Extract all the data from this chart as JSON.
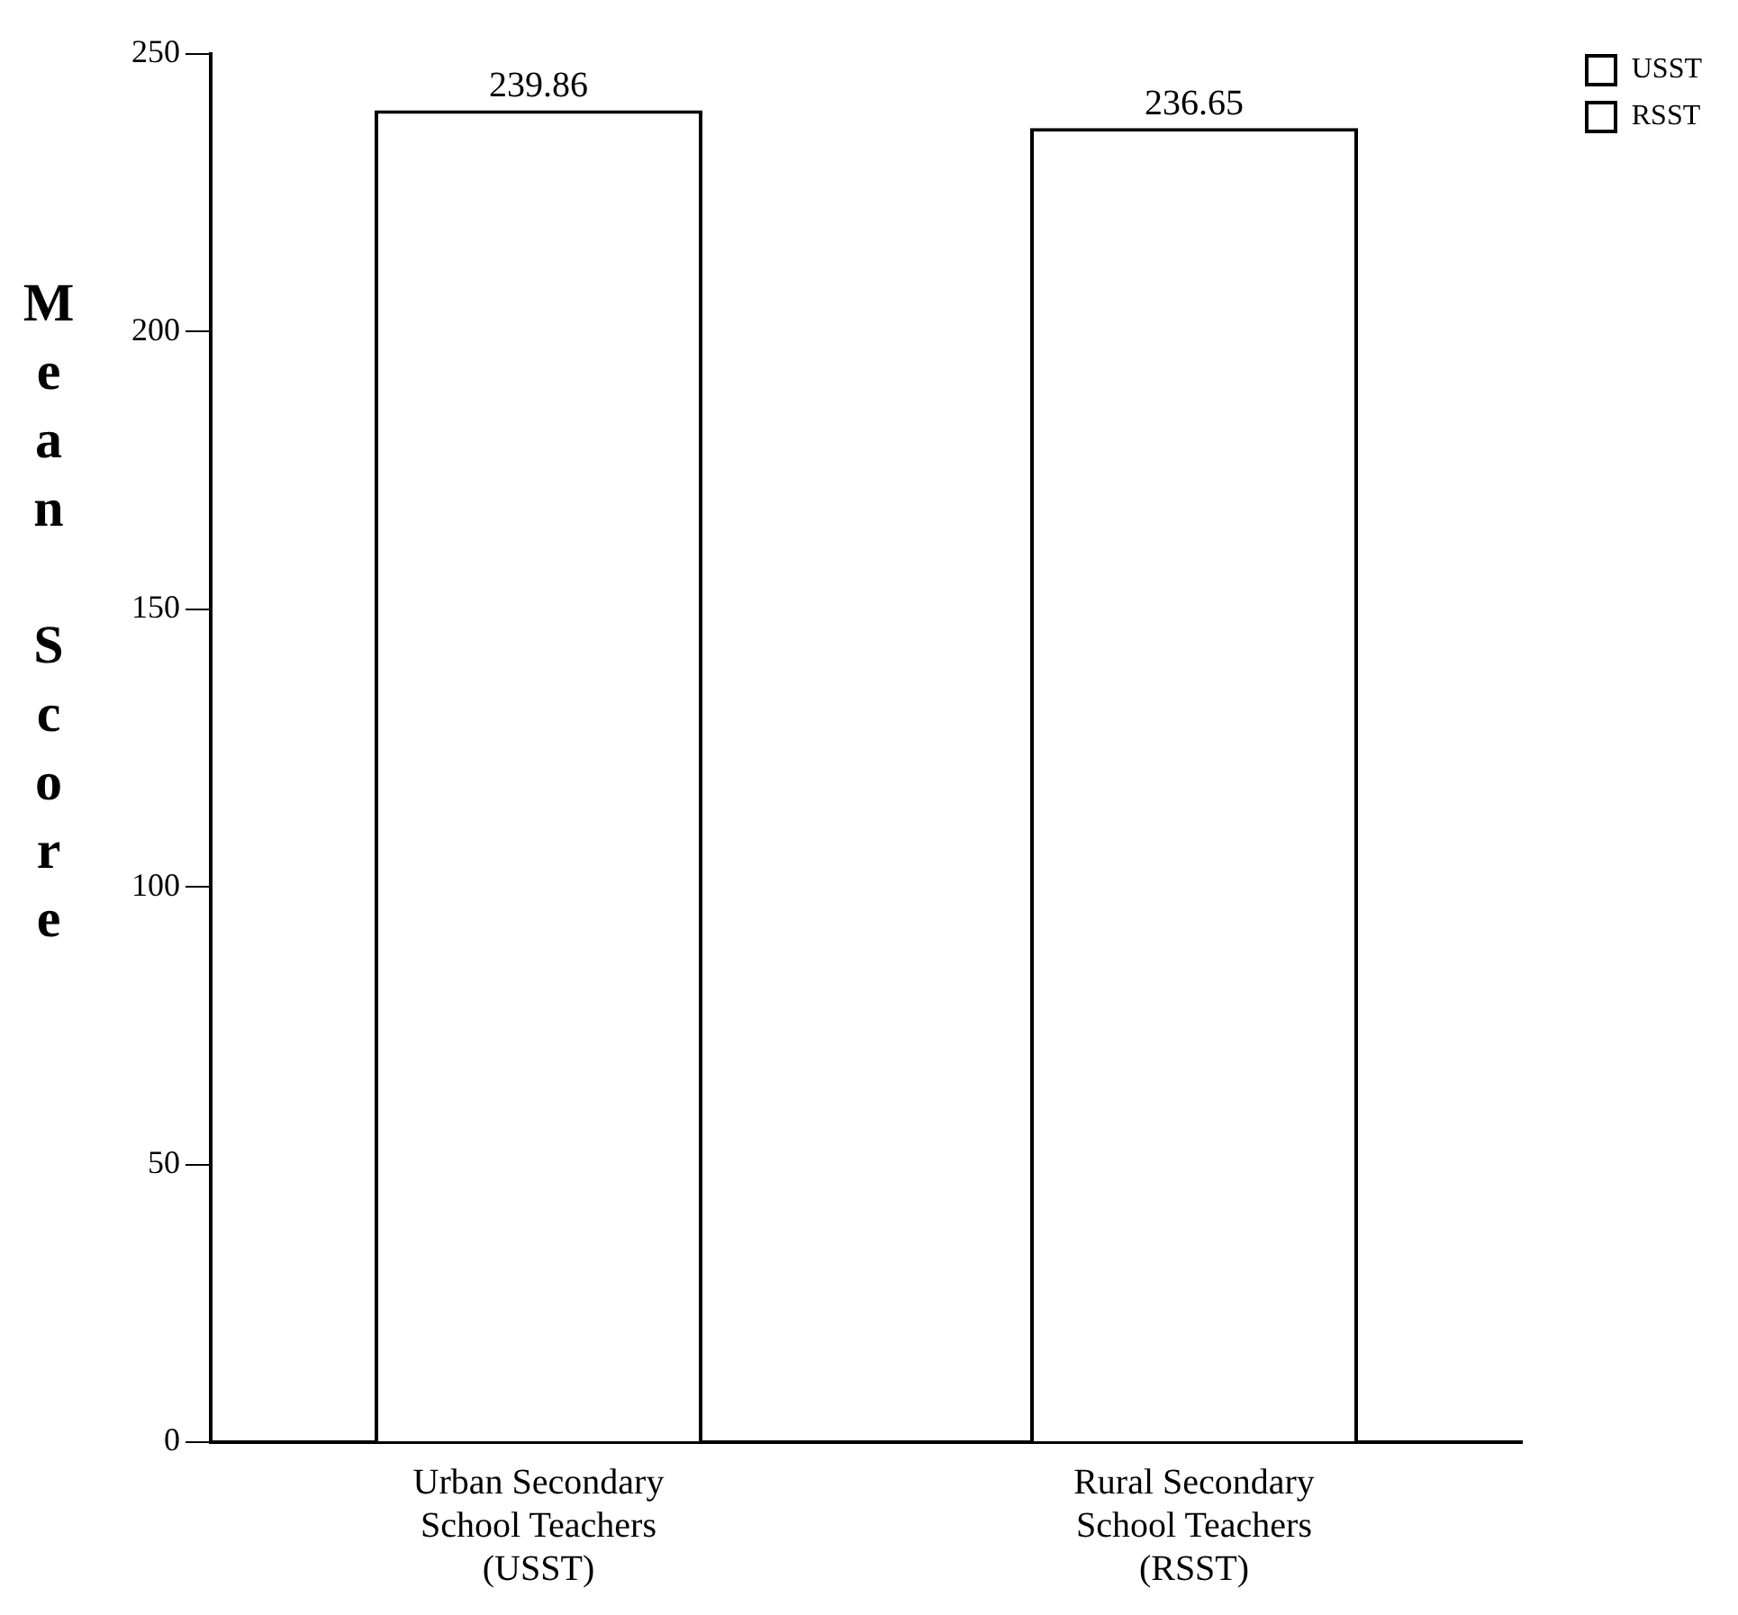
{
  "chart_data": {
    "type": "bar",
    "ylabel": "Mean Score",
    "categories": [
      "Urban Secondary School Teachers (USST)",
      "Rural Secondary School Teachers (RSST)"
    ],
    "series": [
      {
        "name": "USST",
        "color": "#ffffff",
        "values": [
          239.86,
          null
        ]
      },
      {
        "name": "RSST",
        "color": "#ffffff",
        "values": [
          null,
          236.65
        ]
      }
    ],
    "ylim": [
      0,
      250
    ],
    "yticks": [
      0,
      50,
      100,
      150,
      200,
      250
    ],
    "grid": false,
    "legend": "top right",
    "data_labels": true
  }
}
